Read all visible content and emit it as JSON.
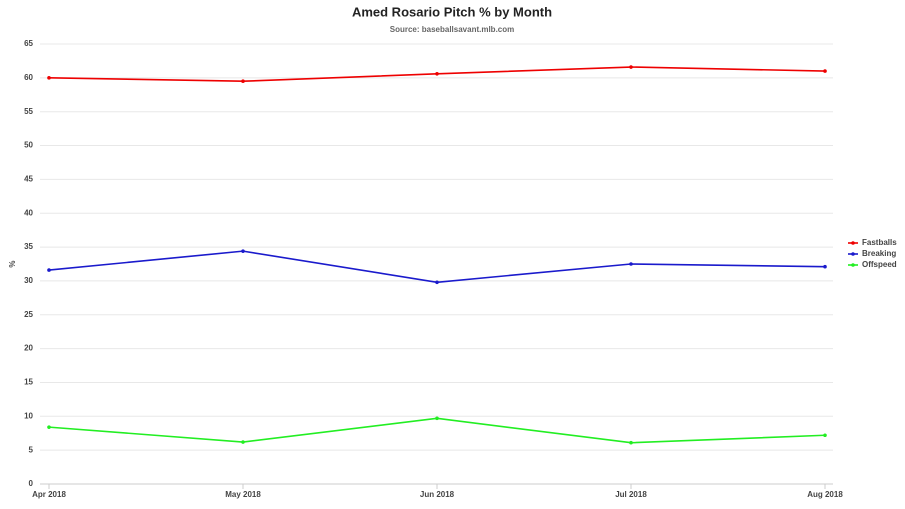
{
  "chart_data": {
    "type": "line",
    "title": "Amed Rosario Pitch % by Month",
    "subtitle": "Source: baseballsavant.mlb.com",
    "y_label": "%",
    "categories": [
      "Apr 2018",
      "May 2018",
      "Jun 2018",
      "Jul 2018",
      "Aug 2018"
    ],
    "series": [
      {
        "name": "Fastballs",
        "color": "#ee0000",
        "values": [
          60.0,
          59.5,
          60.6,
          61.6,
          61.0
        ]
      },
      {
        "name": "Breaking",
        "color": "#1a1acc",
        "values": [
          31.6,
          34.4,
          29.8,
          32.5,
          32.1
        ]
      },
      {
        "name": "Offspeed",
        "color": "#22ee22",
        "values": [
          8.4,
          6.2,
          9.7,
          6.1,
          7.2
        ]
      }
    ],
    "ylim": [
      0,
      65
    ],
    "yticks": [
      0,
      5,
      10,
      15,
      20,
      25,
      30,
      35,
      40,
      45,
      50,
      55,
      60,
      65
    ],
    "grid": true,
    "legend": "right"
  }
}
